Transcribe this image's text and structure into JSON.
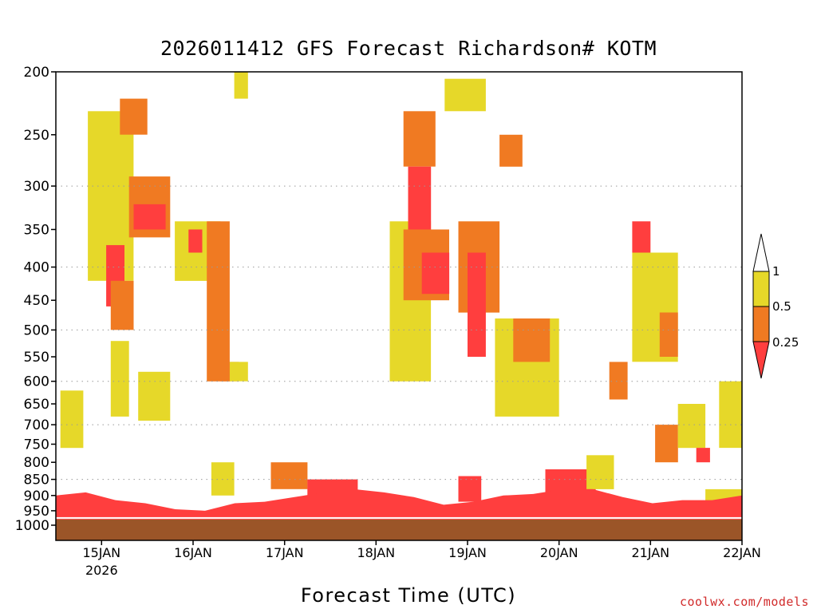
{
  "colors": {
    "low": "#ff3e3e",
    "mid": "#f07a22",
    "high": "#e6d829",
    "ground": "#9b5528",
    "credit": "#d12a2a"
  },
  "credit": "coolwx.com/models",
  "chart_data": {
    "type": "heatmap",
    "title": "2026011412 GFS Forecast Richardson# KOTM",
    "xlabel": "Forecast Time (UTC)",
    "ylabel": "",
    "y_scale": "log-pressure (inverted)",
    "ylim": [
      1000,
      200
    ],
    "y_ticks": [
      200,
      250,
      300,
      350,
      400,
      450,
      500,
      550,
      600,
      650,
      700,
      750,
      800,
      850,
      900,
      950,
      1000
    ],
    "y_gridlines": [
      300,
      400,
      500,
      600,
      700,
      850
    ],
    "x_ticks": [
      {
        "label": "15JAN",
        "sublabel": "2026",
        "day": 15
      },
      {
        "label": "16JAN",
        "day": 16
      },
      {
        "label": "17JAN",
        "day": 17
      },
      {
        "label": "18JAN",
        "day": 18
      },
      {
        "label": "19JAN",
        "day": 19
      },
      {
        "label": "20JAN",
        "day": 20
      },
      {
        "label": "21JAN",
        "day": 21
      },
      {
        "label": "22JAN",
        "day": 22
      }
    ],
    "xlim_day": [
      14.5,
      22.0
    ],
    "colorbar": {
      "labels": [
        "1",
        "0.5",
        "0.25"
      ],
      "bins": [
        {
          "range": "< 0.25",
          "color": "#ff3e3e"
        },
        {
          "range": "0.25 - 0.5",
          "color": "#f07a22"
        },
        {
          "range": "0.5 - 1",
          "color": "#e6d829"
        }
      ]
    },
    "boundary_layer": {
      "category": "< 0.25",
      "top_p": [
        900,
        890,
        915,
        925,
        945,
        950,
        925,
        920,
        905,
        890,
        880,
        890,
        905,
        930,
        920,
        900,
        895,
        880,
        880,
        905,
        925,
        915,
        915,
        900
      ]
    },
    "ground_p": 980,
    "regions": [
      {
        "day0": 14.55,
        "day1": 14.8,
        "p0": 620,
        "p1": 760,
        "cat": "high"
      },
      {
        "day0": 14.85,
        "day1": 15.35,
        "p0": 230,
        "p1": 420,
        "cat": "high"
      },
      {
        "day0": 15.05,
        "day1": 15.25,
        "p0": 370,
        "p1": 460,
        "cat": "low"
      },
      {
        "day0": 15.1,
        "day1": 15.35,
        "p0": 420,
        "p1": 500,
        "cat": "mid"
      },
      {
        "day0": 15.1,
        "day1": 15.3,
        "p0": 520,
        "p1": 680,
        "cat": "high"
      },
      {
        "day0": 15.2,
        "day1": 15.5,
        "p0": 220,
        "p1": 250,
        "cat": "mid"
      },
      {
        "day0": 15.3,
        "day1": 15.75,
        "p0": 290,
        "p1": 360,
        "cat": "mid"
      },
      {
        "day0": 15.35,
        "day1": 15.7,
        "p0": 320,
        "p1": 350,
        "cat": "low"
      },
      {
        "day0": 15.4,
        "day1": 15.75,
        "p0": 580,
        "p1": 690,
        "cat": "high"
      },
      {
        "day0": 15.8,
        "day1": 16.3,
        "p0": 340,
        "p1": 420,
        "cat": "high"
      },
      {
        "day0": 15.95,
        "day1": 16.1,
        "p0": 350,
        "p1": 380,
        "cat": "low"
      },
      {
        "day0": 16.15,
        "day1": 16.4,
        "p0": 340,
        "p1": 600,
        "cat": "mid"
      },
      {
        "day0": 16.3,
        "day1": 16.5,
        "p0": 560,
        "p1": 600,
        "cat": "mid"
      },
      {
        "day0": 16.4,
        "day1": 16.6,
        "p0": 560,
        "p1": 600,
        "cat": "high"
      },
      {
        "day0": 16.45,
        "day1": 16.6,
        "p0": 200,
        "p1": 220,
        "cat": "high"
      },
      {
        "day0": 16.2,
        "day1": 16.45,
        "p0": 800,
        "p1": 900,
        "cat": "high"
      },
      {
        "day0": 16.85,
        "day1": 17.25,
        "p0": 800,
        "p1": 880,
        "cat": "mid"
      },
      {
        "day0": 17.25,
        "day1": 17.8,
        "p0": 850,
        "p1": 900,
        "cat": "low"
      },
      {
        "day0": 18.15,
        "day1": 18.6,
        "p0": 340,
        "p1": 600,
        "cat": "high"
      },
      {
        "day0": 18.3,
        "day1": 18.65,
        "p0": 230,
        "p1": 280,
        "cat": "mid"
      },
      {
        "day0": 18.35,
        "day1": 18.6,
        "p0": 280,
        "p1": 350,
        "cat": "low"
      },
      {
        "day0": 18.3,
        "day1": 18.8,
        "p0": 350,
        "p1": 450,
        "cat": "mid"
      },
      {
        "day0": 18.5,
        "day1": 18.8,
        "p0": 380,
        "p1": 440,
        "cat": "low"
      },
      {
        "day0": 18.75,
        "day1": 19.2,
        "p0": 205,
        "p1": 230,
        "cat": "high"
      },
      {
        "day0": 18.9,
        "day1": 19.35,
        "p0": 340,
        "p1": 470,
        "cat": "mid"
      },
      {
        "day0": 19.0,
        "day1": 19.2,
        "p0": 380,
        "p1": 550,
        "cat": "low"
      },
      {
        "day0": 19.35,
        "day1": 19.6,
        "p0": 250,
        "p1": 280,
        "cat": "mid"
      },
      {
        "day0": 19.3,
        "day1": 20.0,
        "p0": 480,
        "p1": 680,
        "cat": "high"
      },
      {
        "day0": 19.5,
        "day1": 19.9,
        "p0": 480,
        "p1": 560,
        "cat": "mid"
      },
      {
        "day0": 18.9,
        "day1": 19.15,
        "p0": 840,
        "p1": 920,
        "cat": "low"
      },
      {
        "day0": 19.85,
        "day1": 20.4,
        "p0": 820,
        "p1": 900,
        "cat": "low"
      },
      {
        "day0": 20.3,
        "day1": 20.6,
        "p0": 780,
        "p1": 880,
        "cat": "high"
      },
      {
        "day0": 20.55,
        "day1": 20.75,
        "p0": 560,
        "p1": 640,
        "cat": "mid"
      },
      {
        "day0": 20.8,
        "day1": 21.0,
        "p0": 340,
        "p1": 380,
        "cat": "low"
      },
      {
        "day0": 20.8,
        "day1": 21.3,
        "p0": 380,
        "p1": 560,
        "cat": "high"
      },
      {
        "day0": 21.1,
        "day1": 21.3,
        "p0": 470,
        "p1": 550,
        "cat": "mid"
      },
      {
        "day0": 21.05,
        "day1": 21.3,
        "p0": 700,
        "p1": 800,
        "cat": "mid"
      },
      {
        "day0": 21.3,
        "day1": 21.6,
        "p0": 650,
        "p1": 760,
        "cat": "high"
      },
      {
        "day0": 21.5,
        "day1": 21.65,
        "p0": 760,
        "p1": 800,
        "cat": "low"
      },
      {
        "day0": 21.75,
        "day1": 22.0,
        "p0": 600,
        "p1": 760,
        "cat": "high"
      },
      {
        "day0": 21.6,
        "day1": 22.0,
        "p0": 880,
        "p1": 930,
        "cat": "high"
      }
    ]
  }
}
